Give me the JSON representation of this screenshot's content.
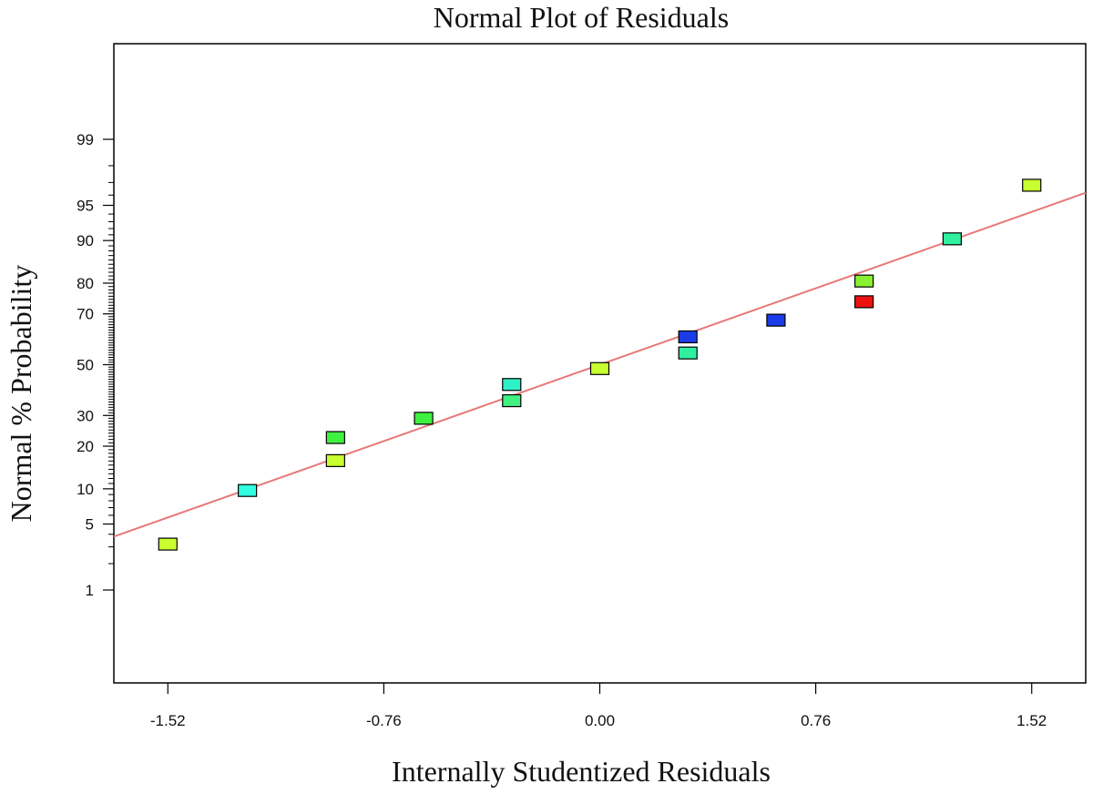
{
  "chart_data": {
    "type": "scatter",
    "title": "Normal Plot of Residuals",
    "xlabel": "Internally Studentized Residuals",
    "ylabel": "Normal % Probability",
    "y_scale": "normal-probability",
    "xlim": [
      -1.71,
      1.71
    ],
    "x_ticks": [
      -1.52,
      -0.76,
      0.0,
      0.76,
      1.52
    ],
    "x_tick_labels": [
      "-1.52",
      "-0.76",
      "0.00",
      "0.76",
      "1.52"
    ],
    "y_ticks": [
      1,
      5,
      10,
      20,
      30,
      50,
      70,
      80,
      90,
      95,
      99
    ],
    "y_tick_labels": [
      "1",
      "5",
      "10",
      "20",
      "30",
      "50",
      "70",
      "80",
      "90",
      "95",
      "99"
    ],
    "grid": false,
    "line_color": "#e87878",
    "reference_line": {
      "from": {
        "x": -1.71,
        "y": 3.8
      },
      "to": {
        "x": 1.71,
        "y": 96.2
      }
    },
    "points": [
      {
        "x": -1.52,
        "y": 3.2,
        "color": "#c8ff30"
      },
      {
        "x": -1.24,
        "y": 9.7,
        "color": "#30ffe0"
      },
      {
        "x": -0.93,
        "y": 16.1,
        "color": "#c8ff30"
      },
      {
        "x": -0.93,
        "y": 22.6,
        "color": "#40f040"
      },
      {
        "x": -0.62,
        "y": 29.0,
        "color": "#40f040"
      },
      {
        "x": -0.31,
        "y": 35.5,
        "color": "#40f080"
      },
      {
        "x": -0.31,
        "y": 41.9,
        "color": "#30f0c8"
      },
      {
        "x": 0.0,
        "y": 48.4,
        "color": "#c8ff30"
      },
      {
        "x": 0.31,
        "y": 54.8,
        "color": "#30f0a0"
      },
      {
        "x": 0.31,
        "y": 61.3,
        "color": "#1a3ce8"
      },
      {
        "x": 0.62,
        "y": 67.7,
        "color": "#1a3ce8"
      },
      {
        "x": 0.93,
        "y": 74.2,
        "color": "#ee1111"
      },
      {
        "x": 0.93,
        "y": 80.6,
        "color": "#88f030"
      },
      {
        "x": 1.24,
        "y": 90.3,
        "color": "#30f0a0"
      },
      {
        "x": 1.52,
        "y": 96.8,
        "color": "#c8ff30"
      }
    ]
  }
}
